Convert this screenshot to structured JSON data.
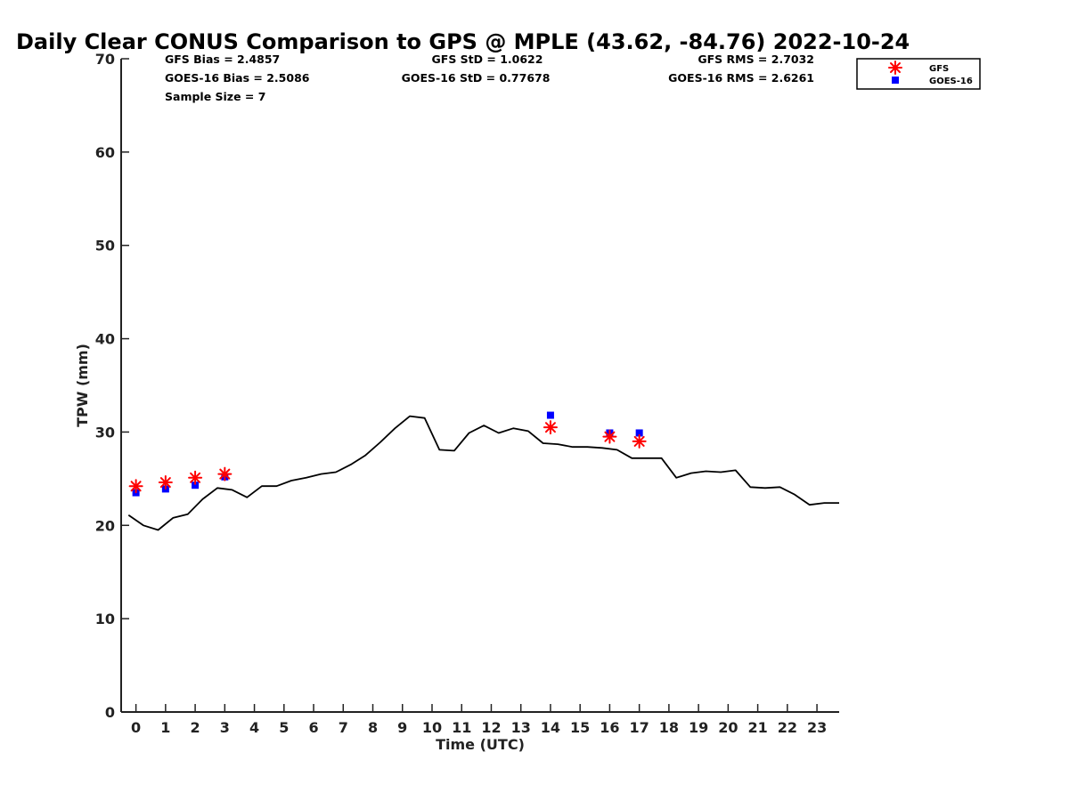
{
  "chart_data": {
    "type": "line",
    "title": "Daily Clear CONUS Comparison to GPS @ MPLE (43.62, -84.76) 2022-10-24",
    "xlabel": "Time (UTC)",
    "ylabel": "TPW (mm)",
    "xlim": [
      -0.5,
      23.75
    ],
    "ylim": [
      0,
      70
    ],
    "x_ticks": [
      0,
      1,
      2,
      3,
      4,
      5,
      6,
      7,
      8,
      9,
      10,
      11,
      12,
      13,
      14,
      15,
      16,
      17,
      18,
      19,
      20,
      21,
      22,
      23
    ],
    "y_ticks": [
      0,
      10,
      20,
      30,
      40,
      50,
      60,
      70
    ],
    "stats": {
      "gfs_bias": "GFS Bias = 2.4857",
      "goes_bias": "GOES-16 Bias = 2.5086",
      "sample_size": "Sample Size = 7",
      "gfs_std": "GFS StD = 1.0622",
      "goes_std": "GOES-16 StD = 0.77678",
      "gfs_rms": "GFS RMS = 2.7032",
      "goes_rms": "GOES-16 RMS = 2.6261"
    },
    "legend": {
      "position": "top-right",
      "entries": [
        "GFS",
        "GOES-16"
      ]
    },
    "series": [
      {
        "name": "GPS",
        "style": "line",
        "color": "#000000",
        "x": [
          -0.25,
          0.25,
          0.75,
          1.25,
          1.75,
          2.25,
          2.75,
          3.25,
          3.75,
          4.25,
          4.75,
          5.25,
          5.75,
          6.25,
          6.75,
          7.25,
          7.75,
          8.25,
          8.75,
          9.25,
          9.75,
          10.25,
          10.75,
          11.25,
          11.75,
          12.25,
          12.75,
          13.25,
          13.75,
          14.25,
          14.75,
          15.25,
          15.75,
          16.25,
          16.75,
          17.25,
          17.75,
          18.25,
          18.75,
          19.25,
          19.75,
          20.25,
          20.75,
          21.25,
          21.75,
          22.25,
          22.75,
          23.25,
          23.75
        ],
        "y": [
          21.1,
          20.0,
          19.5,
          20.8,
          21.2,
          22.8,
          24.0,
          23.8,
          23.0,
          24.2,
          24.2,
          24.8,
          25.1,
          25.5,
          25.7,
          26.5,
          27.5,
          28.9,
          30.4,
          31.7,
          31.5,
          28.1,
          28.0,
          29.9,
          30.7,
          29.9,
          30.4,
          30.1,
          28.8,
          28.7,
          28.4,
          28.4,
          28.3,
          28.1,
          27.2,
          27.2,
          27.2,
          25.1,
          25.6,
          25.8,
          25.7,
          25.9,
          24.1,
          24.0,
          24.1,
          23.3,
          22.2,
          22.4,
          22.4
        ]
      },
      {
        "name": "GFS",
        "style": "marker-asterisk",
        "color": "#ff0000",
        "x": [
          0,
          1,
          2,
          3,
          14,
          16,
          17
        ],
        "y": [
          24.2,
          24.6,
          25.1,
          25.5,
          30.5,
          29.5,
          29.0
        ]
      },
      {
        "name": "GOES-16",
        "style": "marker-square",
        "color": "#0000ff",
        "x": [
          0,
          1,
          2,
          3,
          14,
          16,
          17
        ],
        "y": [
          23.5,
          23.9,
          24.3,
          25.2,
          31.8,
          29.9,
          29.9
        ]
      }
    ]
  }
}
